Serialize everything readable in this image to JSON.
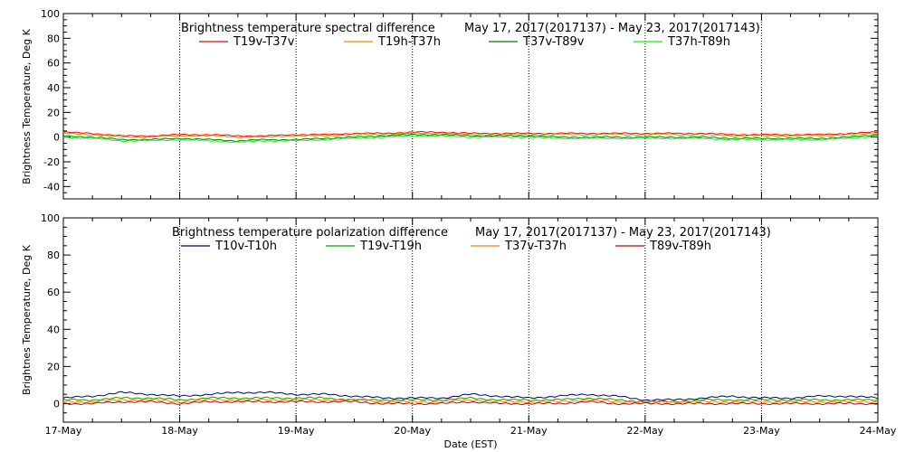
{
  "xlabel": "Date (EST)",
  "x_ticks": [
    "17-May",
    "18-May",
    "19-May",
    "20-May",
    "21-May",
    "22-May",
    "23-May",
    "24-May"
  ],
  "chart_data": [
    {
      "type": "line",
      "title": "Brightness temperature spectral difference",
      "date_range": "May 17, 2017(2017137) - May 23, 2017(2017143)",
      "ylabel": "Brightness Temperature, Deg K",
      "ylim": [
        -50,
        100
      ],
      "yticks": [
        -40,
        -20,
        0,
        20,
        40,
        60,
        80,
        100
      ],
      "grid": "dotted vertical at day boundaries",
      "legend_position": "top",
      "x": [
        0,
        0.25,
        0.5,
        0.75,
        1,
        1.25,
        1.5,
        1.75,
        2,
        2.25,
        2.5,
        2.75,
        3,
        3.25,
        3.5,
        3.75,
        4,
        4.25,
        4.5,
        4.75,
        5,
        5.25,
        5.5,
        5.75,
        6,
        6.25,
        6.5,
        6.75,
        7
      ],
      "series": [
        {
          "name": "T19v-T37v",
          "color": "#ff0000",
          "values": [
            4,
            3,
            1,
            1,
            2,
            2,
            1,
            1,
            2,
            2,
            3,
            3,
            4,
            4,
            3,
            3,
            3,
            3,
            3,
            3,
            3,
            3,
            3,
            2,
            2,
            2,
            2,
            3,
            4
          ]
        },
        {
          "name": "T19h-T37h",
          "color": "#ff8000",
          "values": [
            3,
            2,
            0,
            0,
            1,
            1,
            0,
            0,
            1,
            1,
            2,
            2,
            3,
            3,
            2,
            2,
            2,
            2,
            2,
            2,
            2,
            2,
            2,
            1,
            1,
            1,
            1,
            2,
            3
          ]
        },
        {
          "name": "T37v-T89v",
          "color": "#008000",
          "values": [
            1,
            0,
            -2,
            -2,
            -1,
            -2,
            -3,
            -2,
            -2,
            -1,
            0,
            1,
            2,
            2,
            1,
            1,
            1,
            0,
            0,
            0,
            0,
            0,
            0,
            -1,
            -1,
            -1,
            -1,
            0,
            2
          ]
        },
        {
          "name": "T37h-T89h",
          "color": "#00ff00",
          "values": [
            0,
            -1,
            -3,
            -3,
            -2,
            -3,
            -4,
            -3,
            -3,
            -2,
            -1,
            0,
            1,
            1,
            0,
            0,
            0,
            -1,
            -1,
            -1,
            -1,
            -1,
            -1,
            -2,
            -2,
            -2,
            -2,
            -1,
            1
          ]
        }
      ]
    },
    {
      "type": "line",
      "title": "Brightness temperature polarization difference",
      "date_range": "May 17, 2017(2017137) - May 23, 2017(2017143)",
      "ylabel": "Brightnes Temperature, Deg K",
      "ylim": [
        -10,
        100
      ],
      "yticks": [
        0,
        20,
        40,
        60,
        80,
        100
      ],
      "grid": "dotted vertical at day boundaries",
      "legend_position": "top",
      "x": [
        0,
        0.25,
        0.5,
        0.75,
        1,
        1.25,
        1.5,
        1.75,
        2,
        2.25,
        2.5,
        2.75,
        3,
        3.25,
        3.5,
        3.75,
        4,
        4.25,
        4.5,
        4.75,
        5,
        5.25,
        5.5,
        5.75,
        6,
        6.25,
        6.5,
        6.75,
        7
      ],
      "series": [
        {
          "name": "T10v-T10h",
          "color": "#000080",
          "values": [
            3,
            4,
            6,
            5,
            4,
            5,
            6,
            6,
            5,
            5,
            4,
            3,
            3,
            3,
            5,
            4,
            3,
            4,
            5,
            4,
            2,
            2,
            3,
            4,
            3,
            3,
            4,
            4,
            3
          ]
        },
        {
          "name": "T19v-T19h",
          "color": "#00aa00",
          "values": [
            2,
            2,
            3,
            3,
            2,
            3,
            3,
            3,
            3,
            3,
            2,
            2,
            2,
            2,
            3,
            2,
            2,
            2,
            3,
            2,
            1,
            1,
            2,
            2,
            2,
            2,
            2,
            2,
            2
          ]
        },
        {
          "name": "T37v-T37h",
          "color": "#ff8000",
          "values": [
            1,
            1,
            2,
            2,
            1,
            2,
            2,
            2,
            2,
            2,
            2,
            1,
            1,
            1,
            2,
            1,
            1,
            1,
            2,
            1,
            1,
            1,
            1,
            1,
            1,
            1,
            1,
            1,
            1
          ]
        },
        {
          "name": "T89v-T89h",
          "color": "#cc0000",
          "values": [
            0,
            0,
            1,
            1,
            0,
            1,
            1,
            1,
            1,
            1,
            1,
            0,
            0,
            0,
            1,
            0,
            0,
            0,
            1,
            0,
            0,
            0,
            0,
            0,
            0,
            0,
            0,
            0,
            0
          ]
        }
      ]
    }
  ]
}
